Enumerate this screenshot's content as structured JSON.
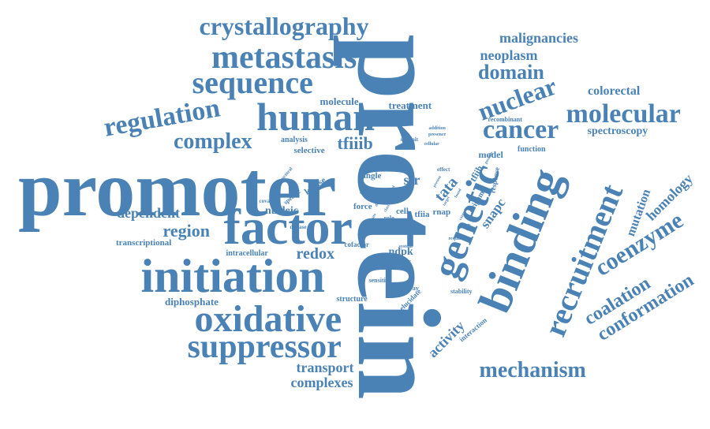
{
  "colors": {
    "word": "#4a82b6",
    "background": "#ffffff"
  },
  "words": [
    "protein",
    "promoter",
    "binding",
    "factor",
    "initiation",
    "genetic",
    "human",
    "recruitment",
    "oxidative",
    "suppressor",
    "metastasis",
    "sequence",
    "crystallography",
    "nuclear",
    "cancer",
    "molecular",
    "regulation",
    "complex",
    "coenzyme",
    "domain",
    "mechanism",
    "conformation",
    "coalation",
    "homology",
    "mutation",
    "tfiiib",
    "region",
    "dependent",
    "redox",
    "malignancies",
    "neoplasm",
    "colorectal",
    "spectroscopy",
    "transport",
    "complexes",
    "activity",
    "tata",
    "snapc",
    "ndpk",
    "str",
    "nucleic",
    "molecule",
    "treatment",
    "diphosphate",
    "transcriptional",
    "intracellular",
    "kinase",
    "cell",
    "tfiia",
    "rnap",
    "force",
    "single",
    "selective",
    "analysis",
    "model",
    "function",
    "recombinant",
    "structure",
    "stability",
    "pathway",
    "sensitive",
    "cofactor",
    "tumour",
    "system",
    "elucidate",
    "interaction",
    "origami",
    "response",
    "specific",
    "covalent",
    "disease",
    "subunit",
    "addition",
    "presence",
    "cellular",
    "structural",
    "similar",
    "role",
    "result",
    "bound",
    "effect",
    "require",
    "tfiih",
    "tfiid",
    "possible",
    "control",
    "viral",
    "direct",
    "present",
    "level",
    "target",
    "site",
    "class",
    "based",
    "found"
  ]
}
